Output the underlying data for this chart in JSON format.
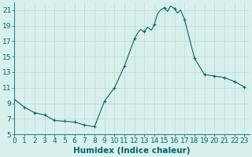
{
  "x": [
    0,
    1,
    2,
    3,
    4,
    5,
    6,
    7,
    8,
    9,
    10,
    11,
    12,
    12.3,
    12.6,
    13,
    13.3,
    13.7,
    14,
    14.3,
    14.6,
    15,
    15.3,
    15.6,
    16,
    16.3,
    16.6,
    17,
    18,
    19,
    20,
    21,
    22,
    23
  ],
  "y": [
    9.5,
    8.5,
    7.8,
    7.5,
    6.8,
    6.7,
    6.6,
    6.2,
    6.0,
    9.3,
    11.0,
    13.8,
    17.3,
    18.0,
    18.5,
    18.2,
    18.8,
    18.4,
    19.2,
    20.5,
    21.0,
    21.3,
    20.8,
    21.5,
    21.2,
    20.6,
    21.0,
    19.8,
    14.8,
    12.7,
    12.5,
    12.3,
    11.8,
    11.1
  ],
  "markers_x": [
    0,
    1,
    2,
    3,
    4,
    5,
    6,
    7,
    8,
    9,
    10,
    11,
    12,
    13,
    14,
    15,
    16,
    17,
    18,
    19,
    20,
    21,
    22,
    23
  ],
  "markers_y": [
    9.5,
    8.5,
    7.8,
    7.5,
    6.8,
    6.7,
    6.6,
    6.2,
    6.0,
    9.3,
    11.0,
    13.8,
    17.3,
    18.2,
    19.2,
    21.3,
    21.2,
    19.8,
    14.8,
    12.7,
    12.5,
    12.3,
    11.8,
    11.1
  ],
  "line_color": "#006666",
  "marker": "+",
  "bg_color": "#d8f0ed",
  "grid_color": "#c0d8d4",
  "tick_color": "#006666",
  "xlabel": "Humidex (Indice chaleur)",
  "ylim": [
    5,
    22
  ],
  "xlim": [
    0,
    23.5
  ],
  "yticks": [
    5,
    7,
    9,
    11,
    13,
    15,
    17,
    19,
    21
  ],
  "xticks": [
    0,
    1,
    2,
    3,
    4,
    5,
    6,
    7,
    8,
    9,
    10,
    11,
    12,
    13,
    14,
    15,
    16,
    17,
    18,
    19,
    20,
    21,
    22,
    23
  ],
  "font_color": "#006666",
  "label_fontsize": 7.5,
  "tick_fontsize": 6.5
}
